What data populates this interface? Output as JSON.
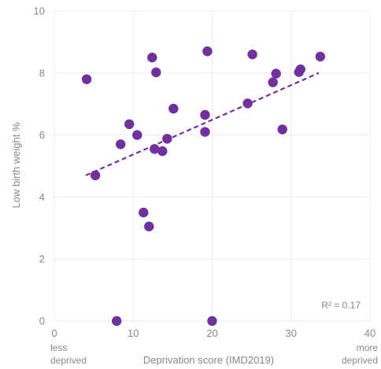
{
  "chart_data": {
    "type": "scatter",
    "xlabel": "Deprivation score (IMD2019)",
    "ylabel": "Low birth weight %",
    "xlim": [
      0,
      40
    ],
    "ylim": [
      0,
      10
    ],
    "x_ticks": [
      "0",
      "10",
      "20",
      "30",
      "40"
    ],
    "y_ticks": [
      "0",
      "2",
      "4",
      "6",
      "8",
      "10"
    ],
    "grid": true,
    "x_end_labels": {
      "left": [
        "less",
        "deprived"
      ],
      "right": [
        "more",
        "deprived"
      ]
    },
    "annotation": "R² = 0.17",
    "point_color": "#7030a0",
    "trendline": {
      "style": "dashed",
      "color": "#7030a0",
      "x": [
        4.0,
        33.5
      ],
      "y": [
        4.7,
        8.0
      ]
    },
    "points": [
      {
        "x": 4.1,
        "y": 7.8
      },
      {
        "x": 5.2,
        "y": 4.7
      },
      {
        "x": 7.9,
        "y": 0.0
      },
      {
        "x": 8.4,
        "y": 5.7
      },
      {
        "x": 9.5,
        "y": 6.35
      },
      {
        "x": 10.5,
        "y": 6.0
      },
      {
        "x": 11.3,
        "y": 3.5
      },
      {
        "x": 12.0,
        "y": 3.05
      },
      {
        "x": 12.4,
        "y": 8.5
      },
      {
        "x": 12.7,
        "y": 5.55
      },
      {
        "x": 12.9,
        "y": 8.02
      },
      {
        "x": 13.7,
        "y": 5.48
      },
      {
        "x": 14.3,
        "y": 5.88
      },
      {
        "x": 15.1,
        "y": 6.85
      },
      {
        "x": 19.1,
        "y": 6.65
      },
      {
        "x": 19.1,
        "y": 6.1
      },
      {
        "x": 19.4,
        "y": 8.7
      },
      {
        "x": 20.0,
        "y": 0.0
      },
      {
        "x": 24.5,
        "y": 7.02
      },
      {
        "x": 25.1,
        "y": 8.6
      },
      {
        "x": 27.7,
        "y": 7.7
      },
      {
        "x": 28.1,
        "y": 7.98
      },
      {
        "x": 28.9,
        "y": 6.18
      },
      {
        "x": 31.0,
        "y": 8.03
      },
      {
        "x": 31.2,
        "y": 8.12
      },
      {
        "x": 33.7,
        "y": 8.53
      }
    ]
  }
}
